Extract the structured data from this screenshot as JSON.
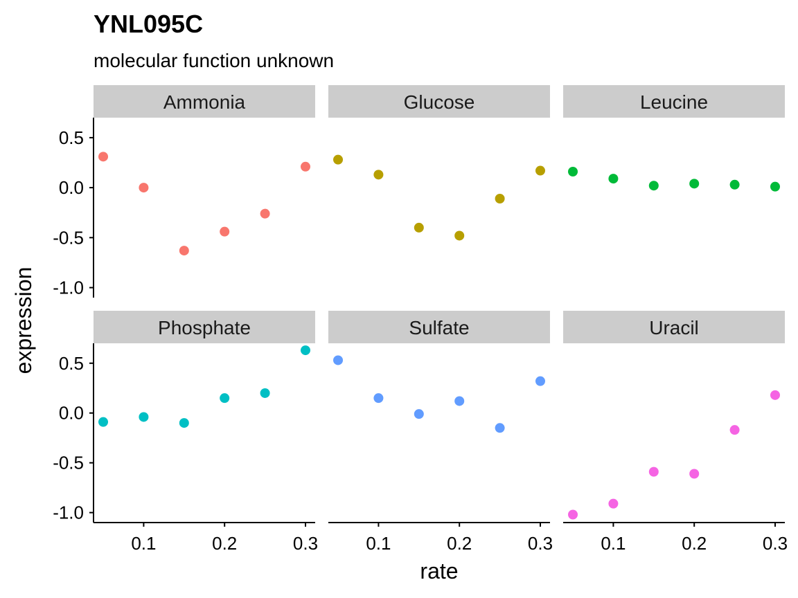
{
  "chart_data": {
    "type": "scatter",
    "title": "YNL095C",
    "subtitle": "molecular function unknown",
    "xlabel": "rate",
    "ylabel": "expression",
    "xlim": [
      0.038,
      0.312
    ],
    "ylim": [
      -1.1,
      0.7
    ],
    "x_ticks": [
      0.1,
      0.2,
      0.3
    ],
    "x_tick_labels": [
      "0.1",
      "0.2",
      "0.3"
    ],
    "y_ticks": [
      0.5,
      0.0,
      -0.5,
      -1.0
    ],
    "y_tick_labels": [
      "0.5",
      "0.0",
      "-0.5",
      "-1.0"
    ],
    "grid": false,
    "legend": "none",
    "facet_layout": "2 rows x 3 columns",
    "series": [
      {
        "name": "Ammonia",
        "color": "#F8766D",
        "x": [
          0.05,
          0.1,
          0.15,
          0.2,
          0.25,
          0.3
        ],
        "y": [
          0.31,
          0.0,
          -0.63,
          -0.44,
          -0.26,
          0.21
        ]
      },
      {
        "name": "Glucose",
        "color": "#B79F00",
        "x": [
          0.05,
          0.1,
          0.15,
          0.2,
          0.25,
          0.3
        ],
        "y": [
          0.28,
          0.13,
          -0.4,
          -0.48,
          -0.11,
          0.17
        ]
      },
      {
        "name": "Leucine",
        "color": "#00BA38",
        "x": [
          0.05,
          0.1,
          0.15,
          0.2,
          0.25,
          0.3
        ],
        "y": [
          0.16,
          0.09,
          0.02,
          0.04,
          0.03,
          0.01
        ]
      },
      {
        "name": "Phosphate",
        "color": "#00BFC4",
        "x": [
          0.05,
          0.1,
          0.15,
          0.2,
          0.25,
          0.3
        ],
        "y": [
          -0.09,
          -0.04,
          -0.1,
          0.15,
          0.2,
          0.63
        ]
      },
      {
        "name": "Sulfate",
        "color": "#619CFF",
        "x": [
          0.05,
          0.1,
          0.15,
          0.2,
          0.25,
          0.3
        ],
        "y": [
          0.53,
          0.15,
          -0.01,
          0.12,
          -0.15,
          0.32
        ]
      },
      {
        "name": "Uracil",
        "color": "#F564E3",
        "x": [
          0.05,
          0.1,
          0.15,
          0.2,
          0.25,
          0.3
        ],
        "y": [
          -1.02,
          -0.91,
          -0.59,
          -0.61,
          -0.17,
          0.18
        ]
      }
    ]
  }
}
